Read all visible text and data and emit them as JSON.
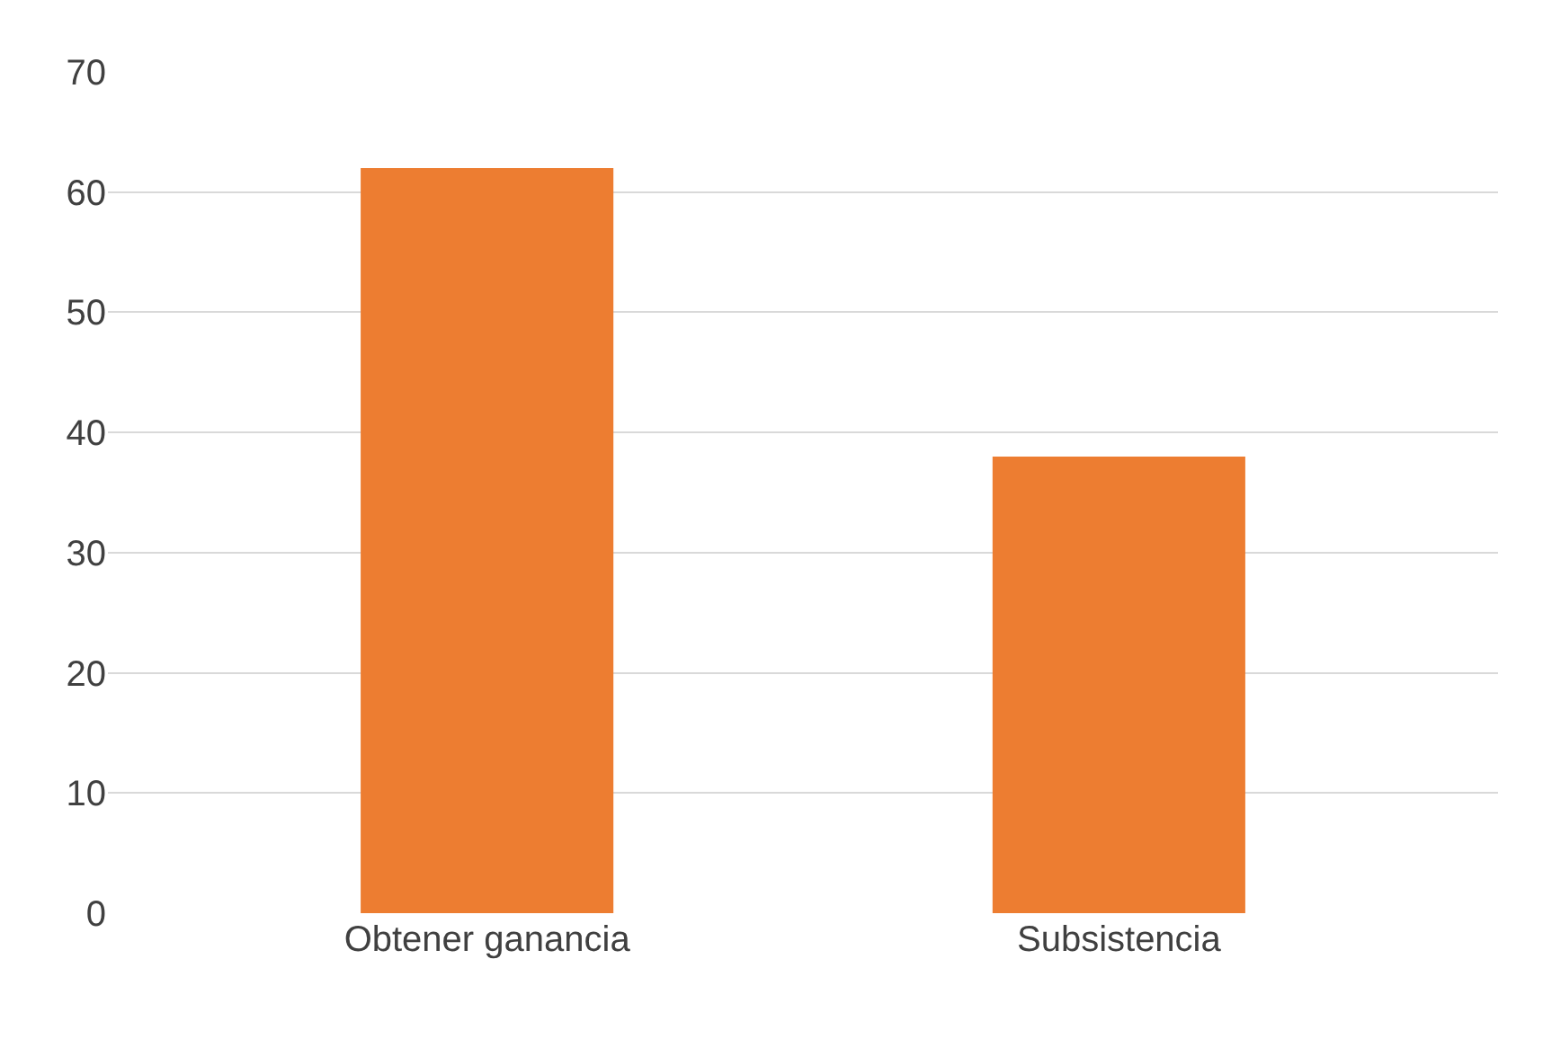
{
  "chart_data": {
    "type": "bar",
    "categories": [
      "Obtener ganancia",
      "Subsistencia"
    ],
    "values": [
      62,
      38
    ],
    "color": "#ed7d31",
    "ylim": [
      0,
      70
    ],
    "yticks": [
      0,
      10,
      20,
      30,
      40,
      50,
      60,
      70
    ],
    "grid": true
  }
}
